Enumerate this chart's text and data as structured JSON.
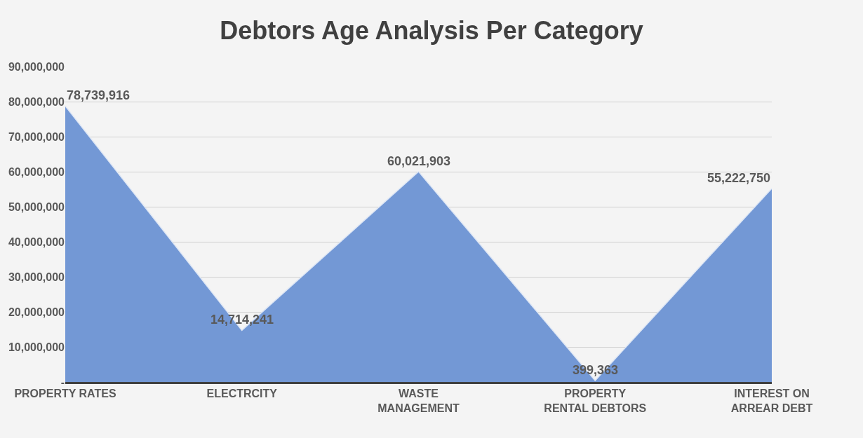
{
  "chart_data": {
    "type": "area",
    "title": "Debtors Age Analysis Per Category",
    "categories": [
      "PROPERTY RATES",
      "ELECTRCITY",
      "WASTE MANAGEMENT",
      "PROPERTY RENTAL DEBTORS",
      "INTEREST ON ARREAR DEBT"
    ],
    "series": [
      {
        "color": "#7398d5",
        "values": [
          78739916,
          14714241,
          60021903,
          399363,
          55222750
        ],
        "value_labels": [
          "78,739,916",
          "14,714,241",
          "60,021,903",
          "399,363",
          "55,222,750"
        ]
      }
    ],
    "ylim": [
      0,
      90000000
    ],
    "yticks": [
      {
        "value": 0,
        "label": "-"
      },
      {
        "value": 10000000,
        "label": "10,000,000"
      },
      {
        "value": 20000000,
        "label": "20,000,000"
      },
      {
        "value": 30000000,
        "label": "30,000,000"
      },
      {
        "value": 40000000,
        "label": "40,000,000"
      },
      {
        "value": 50000000,
        "label": "50,000,000"
      },
      {
        "value": 60000000,
        "label": "60,000,000"
      },
      {
        "value": 70000000,
        "label": "70,000,000"
      },
      {
        "value": 80000000,
        "label": "80,000,000"
      },
      {
        "value": 90000000,
        "label": "90,000,000"
      }
    ],
    "grid": "y"
  }
}
